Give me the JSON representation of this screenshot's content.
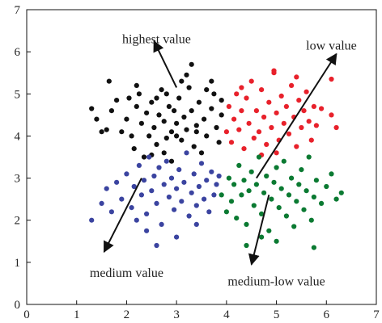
{
  "chart_data": {
    "type": "scatter",
    "title": "",
    "xlabel": "",
    "ylabel": "",
    "xlim": [
      0,
      7
    ],
    "ylim": [
      0,
      7
    ],
    "x_ticks": [
      0,
      1,
      2,
      3,
      4,
      5,
      6,
      7
    ],
    "y_ticks": [
      0,
      1,
      2,
      3,
      4,
      5,
      6,
      7
    ],
    "grid": false,
    "legend": false,
    "series": [
      {
        "color": "#111111",
        "points": [
          [
            1.3,
            4.65
          ],
          [
            1.4,
            4.4
          ],
          [
            1.6,
            4.15
          ],
          [
            1.7,
            4.6
          ],
          [
            1.8,
            4.85
          ],
          [
            1.9,
            4.1
          ],
          [
            2.0,
            4.4
          ],
          [
            2.1,
            4.0
          ],
          [
            2.15,
            3.7
          ],
          [
            2.2,
            4.7
          ],
          [
            2.25,
            5.0
          ],
          [
            2.3,
            4.3
          ],
          [
            2.35,
            3.5
          ],
          [
            2.4,
            4.55
          ],
          [
            2.45,
            4.0
          ],
          [
            2.5,
            4.8
          ],
          [
            2.55,
            4.2
          ],
          [
            2.6,
            3.8
          ],
          [
            2.65,
            4.5
          ],
          [
            2.7,
            5.1
          ],
          [
            2.75,
            4.35
          ],
          [
            2.8,
            3.95
          ],
          [
            2.85,
            4.7
          ],
          [
            2.9,
            4.1
          ],
          [
            2.95,
            4.6
          ],
          [
            3.0,
            4.3
          ],
          [
            3.05,
            4.9
          ],
          [
            3.1,
            3.9
          ],
          [
            3.15,
            4.45
          ],
          [
            3.2,
            4.15
          ],
          [
            3.25,
            5.15
          ],
          [
            3.3,
            4.6
          ],
          [
            3.35,
            3.75
          ],
          [
            3.4,
            4.25
          ],
          [
            3.45,
            4.8
          ],
          [
            3.5,
            3.6
          ],
          [
            3.55,
            4.4
          ],
          [
            3.6,
            4.0
          ],
          [
            3.7,
            4.65
          ],
          [
            3.75,
            5.0
          ],
          [
            3.8,
            4.2
          ],
          [
            3.85,
            3.85
          ],
          [
            3.9,
            4.5
          ],
          [
            2.5,
            3.55
          ],
          [
            2.9,
            3.4
          ],
          [
            3.1,
            5.3
          ],
          [
            2.8,
            5.0
          ],
          [
            3.2,
            5.45
          ],
          [
            3.3,
            5.7
          ],
          [
            1.65,
            5.3
          ],
          [
            2.2,
            5.2
          ],
          [
            3.7,
            5.3
          ],
          [
            1.5,
            4.1
          ],
          [
            2.05,
            4.9
          ],
          [
            2.6,
            4.9
          ],
          [
            3.0,
            4.0
          ],
          [
            3.4,
            4.1
          ],
          [
            2.75,
            3.6
          ],
          [
            3.9,
            4.85
          ],
          [
            3.6,
            5.1
          ]
        ]
      },
      {
        "color": "#e8212b",
        "points": [
          [
            4.0,
            4.1
          ],
          [
            4.05,
            4.7
          ],
          [
            4.1,
            3.85
          ],
          [
            4.15,
            4.4
          ],
          [
            4.2,
            5.0
          ],
          [
            4.25,
            4.15
          ],
          [
            4.3,
            4.6
          ],
          [
            4.35,
            3.7
          ],
          [
            4.4,
            4.9
          ],
          [
            4.45,
            4.3
          ],
          [
            4.5,
            5.3
          ],
          [
            4.55,
            3.95
          ],
          [
            4.6,
            4.6
          ],
          [
            4.65,
            4.1
          ],
          [
            4.7,
            5.1
          ],
          [
            4.75,
            4.45
          ],
          [
            4.8,
            3.8
          ],
          [
            4.85,
            4.8
          ],
          [
            4.9,
            4.2
          ],
          [
            4.95,
            5.5
          ],
          [
            5.0,
            4.55
          ],
          [
            5.05,
            3.9
          ],
          [
            5.1,
            4.95
          ],
          [
            5.15,
            4.3
          ],
          [
            5.2,
            4.7
          ],
          [
            5.25,
            4.05
          ],
          [
            5.3,
            5.2
          ],
          [
            5.35,
            4.45
          ],
          [
            5.4,
            3.75
          ],
          [
            5.45,
            4.85
          ],
          [
            5.5,
            4.2
          ],
          [
            5.55,
            4.6
          ],
          [
            5.6,
            5.05
          ],
          [
            5.65,
            4.35
          ],
          [
            5.7,
            3.9
          ],
          [
            5.75,
            4.7
          ],
          [
            5.8,
            4.25
          ],
          [
            6.1,
            4.5
          ],
          [
            6.2,
            4.2
          ],
          [
            5.9,
            4.65
          ],
          [
            6.1,
            5.35
          ],
          [
            4.95,
            5.55
          ],
          [
            4.3,
            5.15
          ],
          [
            5.0,
            3.6
          ],
          [
            4.7,
            3.55
          ],
          [
            5.4,
            5.4
          ]
        ]
      },
      {
        "color": "#3b44a0",
        "points": [
          [
            1.3,
            2.0
          ],
          [
            1.5,
            2.4
          ],
          [
            1.6,
            2.75
          ],
          [
            1.7,
            2.2
          ],
          [
            1.8,
            2.9
          ],
          [
            1.9,
            2.5
          ],
          [
            2.0,
            3.1
          ],
          [
            2.1,
            2.3
          ],
          [
            2.15,
            2.8
          ],
          [
            2.2,
            2.0
          ],
          [
            2.25,
            3.3
          ],
          [
            2.3,
            2.6
          ],
          [
            2.35,
            2.95
          ],
          [
            2.4,
            2.15
          ],
          [
            2.45,
            3.5
          ],
          [
            2.5,
            2.7
          ],
          [
            2.55,
            3.05
          ],
          [
            2.6,
            2.4
          ],
          [
            2.65,
            3.25
          ],
          [
            2.7,
            1.9
          ],
          [
            2.75,
            2.85
          ],
          [
            2.8,
            3.4
          ],
          [
            2.85,
            2.55
          ],
          [
            2.9,
            3.0
          ],
          [
            2.95,
            2.25
          ],
          [
            3.0,
            2.75
          ],
          [
            3.05,
            3.2
          ],
          [
            3.1,
            2.45
          ],
          [
            3.15,
            2.9
          ],
          [
            3.2,
            3.6
          ],
          [
            3.25,
            2.1
          ],
          [
            3.3,
            2.65
          ],
          [
            3.35,
            3.1
          ],
          [
            3.4,
            2.35
          ],
          [
            3.45,
            2.8
          ],
          [
            3.5,
            3.35
          ],
          [
            3.55,
            2.5
          ],
          [
            3.6,
            2.95
          ],
          [
            3.65,
            2.2
          ],
          [
            3.7,
            3.15
          ],
          [
            3.75,
            2.6
          ],
          [
            3.8,
            2.85
          ],
          [
            3.85,
            3.05
          ],
          [
            2.6,
            1.4
          ],
          [
            2.4,
            1.75
          ],
          [
            3.0,
            1.6
          ],
          [
            3.4,
            1.9
          ]
        ]
      },
      {
        "color": "#0b7a32",
        "points": [
          [
            3.9,
            2.6
          ],
          [
            4.0,
            2.2
          ],
          [
            4.05,
            3.0
          ],
          [
            4.1,
            2.45
          ],
          [
            4.15,
            2.85
          ],
          [
            4.2,
            2.05
          ],
          [
            4.25,
            3.3
          ],
          [
            4.3,
            2.6
          ],
          [
            4.35,
            2.95
          ],
          [
            4.4,
            1.9
          ],
          [
            4.45,
            2.7
          ],
          [
            4.5,
            3.15
          ],
          [
            4.55,
            2.35
          ],
          [
            4.6,
            2.85
          ],
          [
            4.65,
            3.5
          ],
          [
            4.7,
            2.15
          ],
          [
            4.75,
            2.65
          ],
          [
            4.8,
            3.05
          ],
          [
            4.85,
            1.75
          ],
          [
            4.9,
            2.5
          ],
          [
            4.95,
            2.9
          ],
          [
            5.0,
            3.25
          ],
          [
            5.05,
            2.3
          ],
          [
            5.1,
            2.75
          ],
          [
            5.15,
            3.4
          ],
          [
            5.2,
            2.1
          ],
          [
            5.25,
            2.6
          ],
          [
            5.3,
            3.0
          ],
          [
            5.35,
            1.85
          ],
          [
            5.4,
            2.45
          ],
          [
            5.45,
            2.85
          ],
          [
            5.5,
            3.2
          ],
          [
            5.55,
            2.25
          ],
          [
            5.6,
            2.7
          ],
          [
            5.65,
            3.5
          ],
          [
            5.7,
            2.0
          ],
          [
            5.75,
            2.55
          ],
          [
            5.8,
            2.95
          ],
          [
            5.9,
            2.4
          ],
          [
            6.0,
            2.8
          ],
          [
            6.2,
            2.5
          ],
          [
            6.3,
            2.65
          ],
          [
            5.0,
            1.5
          ],
          [
            4.4,
            1.4
          ],
          [
            5.75,
            1.35
          ],
          [
            6.1,
            3.1
          ],
          [
            4.7,
            1.6
          ]
        ]
      }
    ],
    "annotations": [
      {
        "text": "highest value",
        "x": 2.6,
        "y": 6.2
      },
      {
        "text": "low value",
        "x": 6.1,
        "y": 6.05
      },
      {
        "text": "medium value",
        "x": 2.0,
        "y": 0.65
      },
      {
        "text": "medium-low value",
        "x": 5.0,
        "y": 0.45
      }
    ],
    "arrows": [
      {
        "label": "highest value",
        "from": [
          3.0,
          5.15
        ],
        "to": [
          2.55,
          6.25
        ]
      },
      {
        "label": "low value",
        "from": [
          4.6,
          3.0
        ],
        "to": [
          6.2,
          5.95
        ]
      },
      {
        "label": "medium value",
        "from": [
          2.3,
          3.0
        ],
        "to": [
          1.55,
          1.25
        ]
      },
      {
        "label": "medium-low value",
        "from": [
          4.85,
          2.6
        ],
        "to": [
          4.5,
          0.95
        ]
      }
    ]
  }
}
